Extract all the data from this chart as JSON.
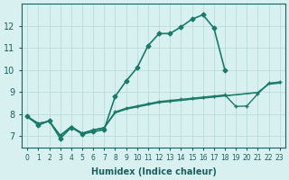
{
  "xlabel": "Humidex (Indice chaleur)",
  "x_values": [
    0,
    1,
    2,
    3,
    4,
    5,
    6,
    7,
    8,
    9,
    10,
    11,
    12,
    13,
    14,
    15,
    16,
    17,
    18,
    19,
    20,
    21,
    22,
    23
  ],
  "line1_y": [
    7.9,
    7.5,
    7.7,
    6.9,
    7.4,
    7.1,
    7.2,
    7.3,
    8.8,
    9.5,
    10.1,
    11.1,
    11.65,
    11.65,
    11.95,
    12.3,
    12.5,
    11.9,
    10.0,
    null,
    null,
    null,
    null,
    null
  ],
  "line2_y": [
    7.85,
    7.57,
    7.67,
    7.02,
    7.42,
    7.12,
    7.27,
    7.37,
    8.05,
    8.22,
    8.32,
    8.42,
    8.52,
    8.57,
    8.62,
    8.67,
    8.72,
    8.77,
    8.82,
    8.87,
    8.92,
    8.97,
    9.35,
    9.4
  ],
  "line3_y": [
    7.9,
    7.58,
    7.68,
    7.04,
    7.44,
    7.14,
    7.29,
    7.39,
    8.1,
    8.27,
    8.37,
    8.47,
    8.57,
    8.62,
    8.67,
    8.72,
    8.77,
    8.82,
    8.87,
    8.35,
    8.37,
    8.92,
    9.4,
    9.46
  ],
  "line4_y": [
    7.88,
    7.59,
    7.69,
    7.03,
    7.43,
    7.13,
    7.28,
    7.38,
    8.07,
    8.24,
    8.34,
    8.44,
    8.54,
    8.59,
    8.64,
    8.69,
    8.74,
    8.79,
    8.84,
    8.89,
    8.94,
    8.99,
    9.38,
    9.43
  ],
  "ylim": [
    6.5,
    13.0
  ],
  "yticks": [
    7,
    8,
    9,
    10,
    11,
    12
  ],
  "xlim": [
    -0.5,
    23.5
  ],
  "xticks": [
    0,
    1,
    2,
    3,
    4,
    5,
    6,
    7,
    8,
    9,
    10,
    11,
    12,
    13,
    14,
    15,
    16,
    17,
    18,
    19,
    20,
    21,
    22,
    23
  ],
  "bg_color": "#d8f0f0",
  "grid_color": "#b0d8d8",
  "line_color": "#1a7a6a",
  "tick_color": "#1a6060",
  "label_color": "#1a6060"
}
